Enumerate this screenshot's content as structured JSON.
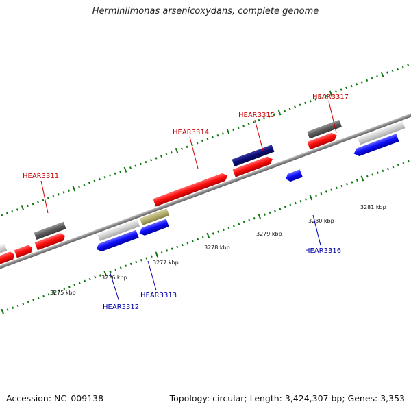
{
  "title": "Herminiimonas arsenicoxydans, complete genome",
  "footer": {
    "accession": "Accession: NC_009138",
    "stats": "Topology: circular; Length: 3,424,307 bp; Genes: 3,353"
  },
  "colors": {
    "forward_label": "#cc0000",
    "reverse_label": "#0000aa",
    "tick": "#117711",
    "backbone": "#8a8a8a"
  },
  "kbp_labels": [
    "3275 kbp",
    "3276 kbp",
    "3277 kbp",
    "3278 kbp",
    "3279 kbp",
    "3280 kbp",
    "3281 kbp"
  ],
  "gene_labels": {
    "forward": [
      "HEAR3311",
      "HEAR3314",
      "HEAR3315",
      "HEAR3317"
    ],
    "reverse": [
      "HEAR3312",
      "HEAR3313",
      "HEAR3316"
    ]
  }
}
